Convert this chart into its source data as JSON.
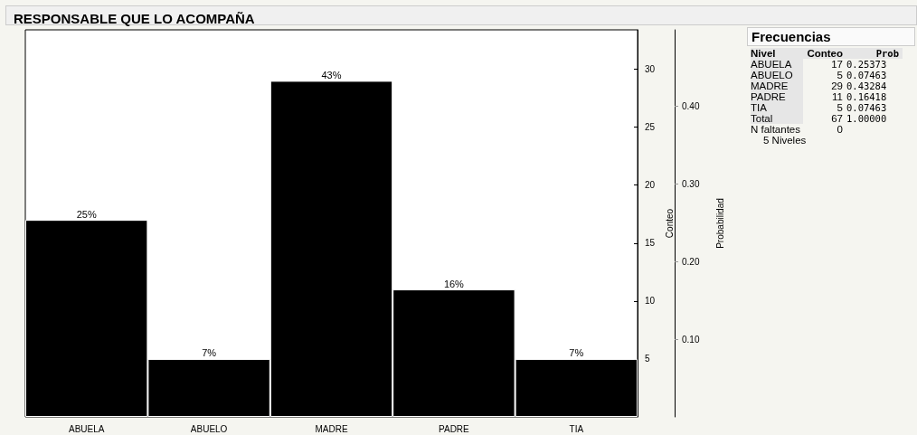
{
  "chart_data": [
    {
      "type": "bar",
      "title": "RESPONSABLE QUE LO ACOMPAÑA",
      "categories": [
        "ABUELA",
        "ABUELO",
        "MADRE",
        "PADRE",
        "TIA"
      ],
      "series": [
        {
          "color": "#000000",
          "values": [
            17,
            5,
            29,
            11,
            5
          ]
        }
      ],
      "annotations": [
        {
          "text": "25%",
          "x": "ABUELA",
          "y": 17
        },
        {
          "text": "7%",
          "x": "ABUELO",
          "y": 5
        },
        {
          "text": "43%",
          "x": "MADRE",
          "y": 29
        },
        {
          "text": "16%",
          "x": "PADRE",
          "y": 11
        },
        {
          "text": "7%",
          "x": "TIA",
          "y": 5
        }
      ],
      "ylabel": "Conteo",
      "ylim": [
        0,
        33.4
      ],
      "yticks": [
        5,
        10,
        15,
        20,
        25,
        30
      ],
      "y2label": "Probabilidad",
      "y2lim": [
        0,
        0.4985
      ],
      "y2ticks": [
        {
          "value": 0.1,
          "label": "0.10"
        },
        {
          "value": 0.2,
          "label": "0.20"
        },
        {
          "value": 0.3,
          "label": "0.30"
        },
        {
          "value": 0.4,
          "label": "0.40"
        }
      ],
      "grid": false
    },
    {
      "type": "other",
      "title": "Frecuencias",
      "annotations": [
        "Nivel",
        "Conteo",
        "Prob",
        "ABUELA",
        "17",
        "0.25373",
        "ABUELO",
        "5",
        "0.07463",
        "MADRE",
        "29",
        "0.43284",
        "PADRE",
        "11",
        "0.16418",
        "TIA",
        "5",
        "0.07463",
        "Total",
        "67",
        "1.00000",
        "N faltantes",
        "0",
        "5 Niveles"
      ]
    }
  ]
}
